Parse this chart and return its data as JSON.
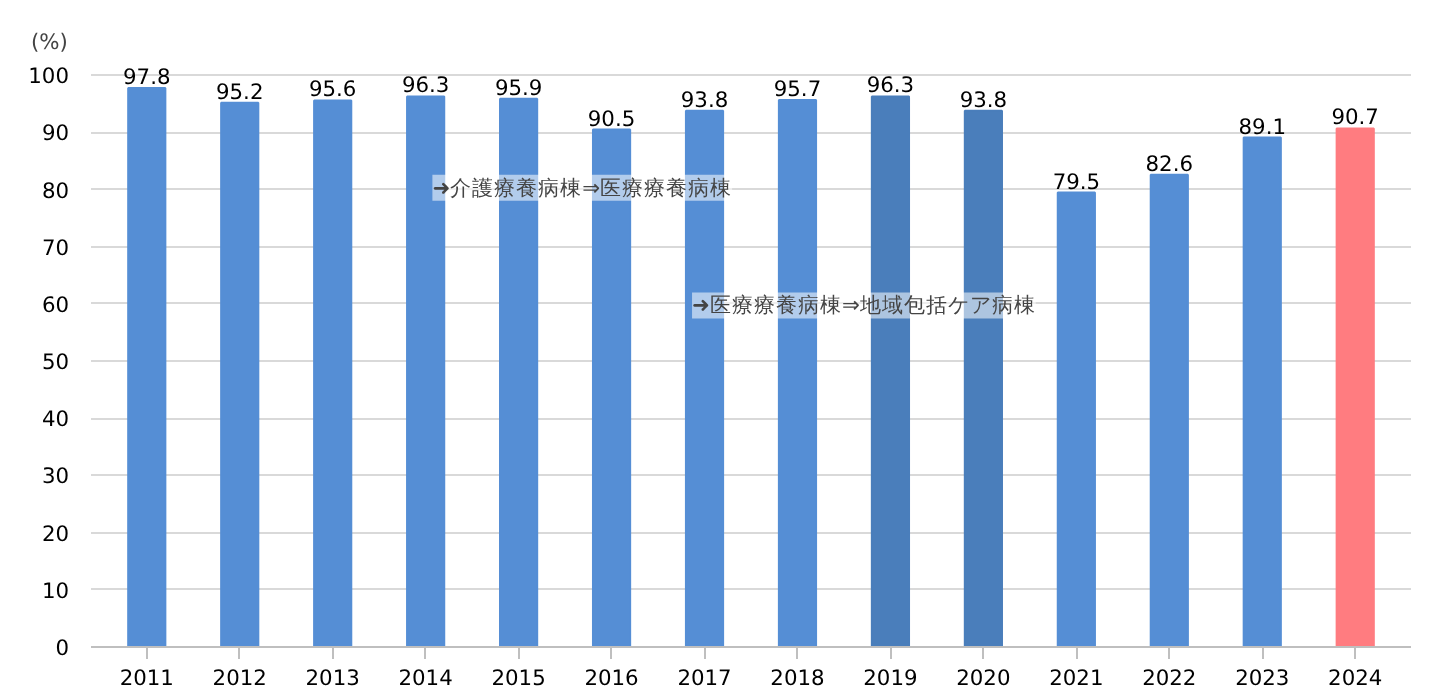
{
  "chart_data": {
    "type": "bar",
    "ylabel": "(%)",
    "categories": [
      "2011",
      "2012",
      "2013",
      "2014",
      "2015",
      "2016",
      "2017",
      "2018",
      "2019",
      "2020",
      "2021",
      "2022",
      "2023",
      "2024"
    ],
    "values": [
      97.8,
      95.2,
      95.6,
      96.3,
      95.9,
      90.5,
      93.8,
      95.7,
      96.3,
      93.8,
      79.5,
      82.6,
      89.1,
      90.7
    ],
    "colors": [
      "#558ed5",
      "#558ed5",
      "#558ed5",
      "#558ed5",
      "#558ed5",
      "#558ed5",
      "#558ed5",
      "#558ed5",
      "#4a7ebb",
      "#4a7ebb",
      "#558ed5",
      "#558ed5",
      "#558ed5",
      "#ff7c80"
    ],
    "ylim": [
      0,
      100
    ],
    "yticks": [
      0,
      10,
      20,
      30,
      40,
      50,
      60,
      70,
      80,
      90,
      100
    ],
    "grid": "y",
    "data_labels": true,
    "annotations": [
      "➜介護療養病棟⇒医療療養病棟",
      "➜医療療養病棟⇒地域包括ケア病棟"
    ]
  }
}
